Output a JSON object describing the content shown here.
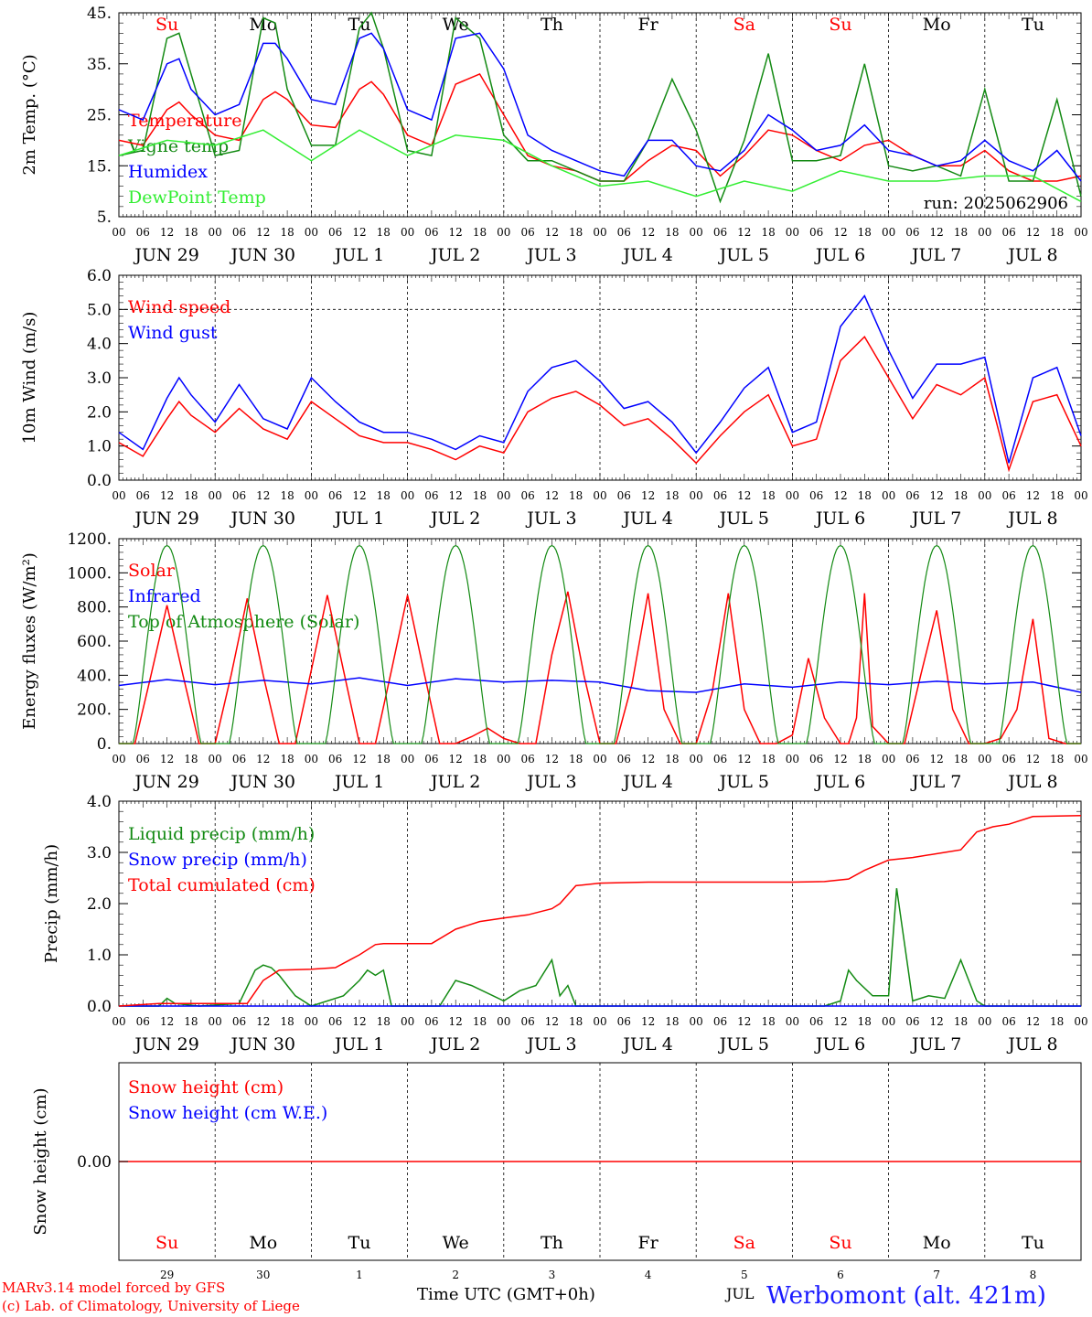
{
  "days": [
    "Su",
    "Mo",
    "Tu",
    "We",
    "Th",
    "Fr",
    "Sa",
    "Su",
    "Mo",
    "Tu"
  ],
  "day_colors": [
    "#ff0000",
    "#000000",
    "#000000",
    "#000000",
    "#000000",
    "#000000",
    "#ff0000",
    "#ff0000",
    "#000000",
    "#000000"
  ],
  "date_labels": [
    "JUN 29",
    "JUN 30",
    "JUL  1",
    "JUL  2",
    "JUL  3",
    "JUL  4",
    "JUL  5",
    "JUL  6",
    "JUL  7",
    "JUL  8"
  ],
  "hour_labels": [
    "00",
    "06",
    "12",
    "18"
  ],
  "hour_end_label": "00",
  "day_numbers": [
    "29",
    "30",
    "1",
    "2",
    "3",
    "4",
    "5",
    "6",
    "7",
    "8"
  ],
  "footer": {
    "model": "MARv3.14 model forced by GFS",
    "lab": "(c) Lab. of Climatology, University of Liege",
    "xlabel": "Time UTC (GMT+0h)",
    "month": "JUL",
    "station": "Werbomont (alt. 421m)"
  },
  "colors": {
    "red": "#ff0000",
    "green": "#138a13",
    "blue": "#0000ff",
    "lightgreen": "#33ee33",
    "grid": "#000000"
  },
  "chart_data": [
    {
      "type": "line",
      "ylabel": "2m Temp. (°C)",
      "ylim": [
        5,
        45
      ],
      "yticks": [
        "5.",
        "15.",
        "25.",
        "35.",
        "45."
      ],
      "annotation": "run: 2025062906",
      "x_unit": "hours from Jun 29 00 UTC",
      "series": [
        {
          "name": "Temperature",
          "color": "red",
          "x": [
            0,
            6,
            12,
            15,
            18,
            24,
            30,
            36,
            39,
            42,
            48,
            54,
            60,
            63,
            66,
            72,
            78,
            84,
            90,
            96,
            102,
            108,
            114,
            117,
            120,
            126,
            132,
            138,
            144,
            150,
            156,
            162,
            168,
            174,
            180,
            186,
            192,
            198,
            204,
            210,
            216,
            222,
            228,
            234,
            240
          ],
          "y": [
            20,
            19,
            26,
            27.5,
            25,
            21,
            20,
            28,
            29.5,
            28,
            23,
            22.5,
            30,
            31.5,
            29,
            21,
            19,
            31,
            33,
            25,
            17,
            15,
            14,
            13,
            12,
            12,
            16,
            19,
            18,
            13,
            17,
            22,
            21,
            18,
            16,
            19,
            20,
            17,
            15,
            15,
            18,
            14,
            12,
            12,
            13
          ]
        },
        {
          "name": "Vigne temp",
          "color": "green",
          "x": [
            0,
            6,
            12,
            15,
            18,
            24,
            30,
            36,
            39,
            42,
            48,
            54,
            60,
            63,
            66,
            72,
            78,
            84,
            90,
            96,
            102,
            108,
            114,
            120,
            126,
            132,
            138,
            144,
            150,
            156,
            162,
            168,
            174,
            180,
            186,
            192,
            198,
            204,
            210,
            216,
            222,
            228,
            234,
            240
          ],
          "y": [
            17,
            18,
            40,
            41,
            33,
            17,
            18,
            44,
            43,
            30,
            19,
            19,
            42,
            45,
            38,
            18,
            17,
            44,
            40,
            21,
            16,
            16,
            14,
            12,
            12,
            20,
            32,
            22,
            8,
            20,
            37,
            16,
            16,
            17,
            35,
            15,
            14,
            15,
            13,
            30,
            12,
            12,
            28,
            9
          ]
        },
        {
          "name": "Humidex",
          "color": "blue",
          "x": [
            0,
            6,
            12,
            15,
            18,
            24,
            30,
            36,
            39,
            42,
            48,
            54,
            60,
            63,
            66,
            72,
            78,
            84,
            90,
            96,
            102,
            108,
            114,
            120,
            126,
            132,
            138,
            144,
            150,
            156,
            162,
            168,
            174,
            180,
            186,
            192,
            198,
            204,
            210,
            216,
            222,
            228,
            234,
            240
          ],
          "y": [
            26,
            24,
            35,
            36,
            30,
            25,
            27,
            39,
            39,
            36,
            28,
            27,
            40,
            41,
            38,
            26,
            24,
            40,
            41,
            34,
            21,
            18,
            16,
            14,
            13,
            20,
            20,
            15,
            14,
            18,
            25,
            22,
            18,
            19,
            23,
            18,
            17,
            15,
            16,
            20,
            16,
            14,
            18,
            12
          ]
        },
        {
          "name": "DewPoint Temp",
          "color": "lightgreen",
          "x": [
            0,
            12,
            24,
            36,
            48,
            60,
            72,
            84,
            96,
            108,
            120,
            132,
            144,
            156,
            168,
            180,
            192,
            204,
            216,
            228,
            240
          ],
          "y": [
            17,
            20,
            19,
            22,
            16,
            22,
            17,
            21,
            20,
            15,
            11,
            12,
            9,
            12,
            10,
            14,
            12,
            12,
            13,
            13,
            8
          ]
        }
      ]
    },
    {
      "type": "line",
      "ylabel": "10m Wind (m/s)",
      "ylim": [
        0,
        6
      ],
      "yticks": [
        "0.0",
        "1.0",
        "2.0",
        "3.0",
        "4.0",
        "5.0",
        "6.0"
      ],
      "series": [
        {
          "name": "Wind speed",
          "color": "red",
          "x": [
            0,
            6,
            12,
            15,
            18,
            24,
            30,
            36,
            42,
            48,
            54,
            60,
            66,
            72,
            78,
            84,
            90,
            96,
            102,
            108,
            114,
            120,
            126,
            132,
            138,
            144,
            150,
            156,
            162,
            168,
            174,
            180,
            186,
            192,
            198,
            204,
            210,
            216,
            222,
            228,
            234,
            240
          ],
          "y": [
            1.1,
            0.7,
            1.8,
            2.3,
            1.9,
            1.4,
            2.1,
            1.5,
            1.2,
            2.3,
            1.8,
            1.3,
            1.1,
            1.1,
            0.9,
            0.6,
            1.0,
            0.8,
            2.0,
            2.4,
            2.6,
            2.2,
            1.6,
            1.8,
            1.2,
            0.5,
            1.3,
            2.0,
            2.5,
            1.0,
            1.2,
            3.5,
            4.2,
            3.0,
            1.8,
            2.8,
            2.5,
            3.0,
            0.3,
            2.3,
            2.5,
            1.0
          ]
        },
        {
          "name": "Wind gust",
          "color": "blue",
          "x": [
            0,
            6,
            12,
            15,
            18,
            24,
            30,
            36,
            42,
            48,
            54,
            60,
            66,
            72,
            78,
            84,
            90,
            96,
            102,
            108,
            114,
            120,
            126,
            132,
            138,
            144,
            150,
            156,
            162,
            168,
            174,
            180,
            186,
            192,
            198,
            204,
            210,
            216,
            222,
            228,
            234,
            240
          ],
          "y": [
            1.4,
            0.9,
            2.4,
            3.0,
            2.5,
            1.7,
            2.8,
            1.8,
            1.5,
            3.0,
            2.3,
            1.7,
            1.4,
            1.4,
            1.2,
            0.9,
            1.3,
            1.1,
            2.6,
            3.3,
            3.5,
            2.9,
            2.1,
            2.3,
            1.7,
            0.8,
            1.7,
            2.7,
            3.3,
            1.4,
            1.7,
            4.5,
            5.4,
            3.8,
            2.4,
            3.4,
            3.4,
            3.6,
            0.5,
            3.0,
            3.3,
            1.3
          ]
        }
      ]
    },
    {
      "type": "line",
      "ylabel": "Energy fluxes (W/m²)",
      "ylim": [
        0,
        1200
      ],
      "yticks": [
        "0.",
        "200.",
        "400.",
        "600.",
        "800.",
        "1000.",
        "1200."
      ],
      "series": [
        {
          "name": "Solar",
          "color": "red",
          "x": [
            0,
            4,
            8,
            12,
            16,
            20,
            24,
            28,
            32,
            36,
            40,
            44,
            48,
            52,
            56,
            60,
            64,
            68,
            72,
            76,
            80,
            84,
            88,
            92,
            96,
            100,
            104,
            108,
            112,
            116,
            120,
            124,
            128,
            132,
            136,
            140,
            144,
            148,
            152,
            156,
            160,
            164,
            168,
            172,
            176,
            180,
            182,
            184,
            186,
            188,
            192,
            196,
            200,
            204,
            208,
            212,
            216,
            220,
            224,
            228,
            232,
            236,
            240
          ],
          "y": [
            0,
            0,
            400,
            810,
            400,
            0,
            0,
            400,
            850,
            400,
            0,
            0,
            430,
            870,
            430,
            0,
            0,
            430,
            870,
            430,
            0,
            0,
            40,
            90,
            30,
            0,
            0,
            520,
            890,
            400,
            0,
            0,
            350,
            880,
            200,
            0,
            0,
            300,
            880,
            200,
            0,
            0,
            50,
            500,
            150,
            0,
            0,
            150,
            880,
            100,
            0,
            0,
            400,
            780,
            200,
            0,
            0,
            30,
            200,
            730,
            30,
            0,
            0
          ]
        },
        {
          "name": "Infrared",
          "color": "blue",
          "x": [
            0,
            12,
            24,
            36,
            48,
            60,
            72,
            84,
            96,
            108,
            120,
            132,
            144,
            156,
            168,
            180,
            192,
            204,
            216,
            228,
            240
          ],
          "y": [
            340,
            375,
            345,
            370,
            350,
            385,
            340,
            380,
            360,
            370,
            360,
            310,
            300,
            350,
            330,
            360,
            345,
            365,
            350,
            360,
            300
          ]
        },
        {
          "name": "Top of Atmosphere (Solar)",
          "color": "green",
          "peaks": 1160
        }
      ]
    },
    {
      "type": "line",
      "ylabel": "Precip (mm/h)",
      "ylim": [
        0,
        4
      ],
      "yticks": [
        "0.0",
        "1.0",
        "2.0",
        "3.0",
        "4.0"
      ],
      "series": [
        {
          "name": "Liquid precip (mm/h)",
          "color": "green",
          "x": [
            0,
            10,
            12,
            14,
            20,
            30,
            34,
            36,
            38,
            40,
            44,
            48,
            56,
            60,
            62,
            64,
            66,
            68,
            72,
            80,
            84,
            88,
            96,
            100,
            104,
            108,
            110,
            112,
            114,
            118,
            130,
            144,
            168,
            176,
            180,
            182,
            184,
            188,
            192,
            194,
            198,
            202,
            206,
            210,
            214,
            216,
            220,
            226,
            230,
            232,
            236,
            240
          ],
          "y": [
            0,
            0,
            0.15,
            0.05,
            0,
            0.05,
            0.7,
            0.8,
            0.75,
            0.6,
            0.2,
            0,
            0.2,
            0.5,
            0.7,
            0.6,
            0.7,
            0,
            0,
            0,
            0.5,
            0.4,
            0.1,
            0.3,
            0.4,
            0.9,
            0.2,
            0.4,
            0,
            0,
            0,
            0,
            0,
            0,
            0.1,
            0.7,
            0.5,
            0.2,
            0.2,
            2.3,
            0.1,
            0.2,
            0.15,
            0.9,
            0.1,
            0,
            0,
            0,
            0,
            0,
            0,
            0
          ]
        },
        {
          "name": "Snow precip (mm/h)",
          "color": "blue",
          "x": [
            0,
            240
          ],
          "y": [
            0,
            0
          ]
        },
        {
          "name": "Total cumulated (cm)",
          "color": "red",
          "x": [
            0,
            10,
            32,
            36,
            40,
            48,
            54,
            60,
            64,
            66,
            72,
            78,
            84,
            90,
            96,
            102,
            108,
            110,
            114,
            120,
            132,
            144,
            156,
            168,
            176,
            182,
            186,
            192,
            198,
            206,
            210,
            214,
            218,
            222,
            228,
            240
          ],
          "y": [
            0,
            0.05,
            0.05,
            0.5,
            0.7,
            0.72,
            0.75,
            1.0,
            1.2,
            1.22,
            1.22,
            1.22,
            1.5,
            1.65,
            1.72,
            1.78,
            1.9,
            2.0,
            2.35,
            2.4,
            2.42,
            2.42,
            2.42,
            2.42,
            2.43,
            2.48,
            2.65,
            2.85,
            2.9,
            3.0,
            3.05,
            3.4,
            3.5,
            3.55,
            3.7,
            3.72
          ]
        }
      ]
    },
    {
      "type": "line",
      "ylabel": "Snow height (cm)",
      "yticks": [
        "0.00"
      ],
      "series": [
        {
          "name": "Snow height (cm)",
          "color": "red",
          "x": [
            0,
            240
          ],
          "y": [
            0,
            0
          ]
        },
        {
          "name": "Snow height (cm W.E.)",
          "color": "blue",
          "x": [
            0,
            240
          ],
          "y": [
            0,
            0
          ]
        }
      ]
    }
  ]
}
